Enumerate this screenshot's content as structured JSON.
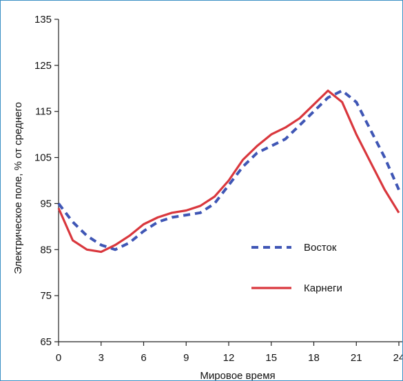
{
  "chart_data": {
    "type": "line",
    "title": "",
    "xlabel": "Мировое время",
    "ylabel": "Электрическое поле, % от среднего",
    "xlim": [
      0,
      24
    ],
    "ylim": [
      65,
      135
    ],
    "xticks": [
      0,
      3,
      6,
      9,
      12,
      15,
      18,
      21,
      24
    ],
    "yticks": [
      65,
      75,
      85,
      95,
      105,
      115,
      125,
      135
    ],
    "grid": false,
    "legend_position": "center-right",
    "series": [
      {
        "name": "Восток",
        "style": "dashed",
        "color": "#3f56b5",
        "x": [
          0,
          1,
          2,
          3,
          4,
          5,
          6,
          7,
          8,
          9,
          10,
          11,
          12,
          13,
          14,
          15,
          16,
          17,
          18,
          19,
          20,
          21,
          22,
          23,
          24
        ],
        "values": [
          95,
          91,
          88,
          86,
          85,
          86.5,
          89,
          91,
          92,
          92.5,
          93,
          95,
          99,
          103,
          106,
          107.5,
          109,
          112,
          115,
          118,
          119.5,
          117,
          111,
          105,
          98
        ]
      },
      {
        "name": "Карнеги",
        "style": "solid",
        "color": "#d9373d",
        "x": [
          0,
          1,
          2,
          3,
          4,
          5,
          6,
          7,
          8,
          9,
          10,
          11,
          12,
          13,
          14,
          15,
          16,
          17,
          18,
          19,
          20,
          21,
          22,
          23,
          24
        ],
        "values": [
          94,
          87,
          85,
          84.5,
          86,
          88,
          90.5,
          92,
          93,
          93.5,
          94.5,
          96.5,
          100,
          104.5,
          107.5,
          110,
          111.5,
          113.5,
          116.5,
          119.5,
          117,
          110,
          104,
          98,
          93
        ]
      }
    ]
  }
}
